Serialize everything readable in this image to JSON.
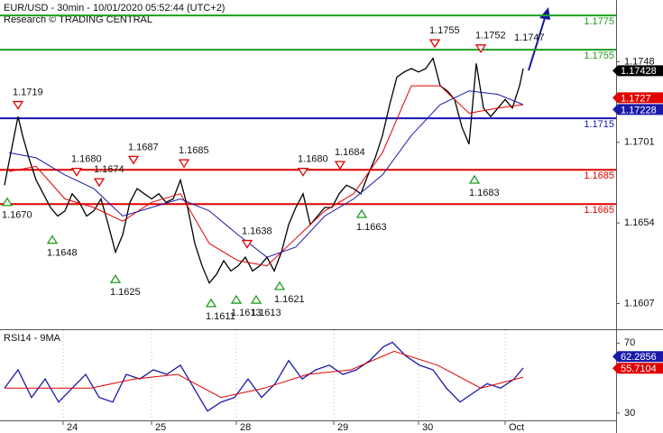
{
  "chart_data": [
    {
      "type": "line",
      "title": "EUR/USD - 30min - 10/01/2020 05:52:44 (UTC+2)",
      "subtitle": "Research © TRADING CENTRAL",
      "xlim": [
        0,
        170.75
      ],
      "ylim": [
        1.1592,
        1.1784
      ],
      "yticks": [
        1.1748,
        1.1701,
        1.1654,
        1.1607
      ],
      "levels": [
        {
          "value": 1.1775,
          "color": "#1f9e1f"
        },
        {
          "value": 1.1755,
          "color": "#1f9e1f"
        },
        {
          "value": 1.1715,
          "color": "#1515b5"
        },
        {
          "value": 1.1685,
          "color": "#e00000"
        },
        {
          "value": 1.1665,
          "color": "#e00000"
        }
      ],
      "series": [
        {
          "color": "#000000",
          "x": [
            1.25,
            3,
            5,
            6.25,
            8,
            10,
            12,
            14,
            16,
            18,
            20,
            22,
            24,
            26,
            28,
            30,
            32,
            34,
            36,
            38,
            40,
            42,
            44,
            46,
            48,
            50,
            52,
            54,
            56,
            58,
            60,
            62,
            64,
            66,
            68,
            70,
            72,
            74,
            76,
            78,
            80,
            82,
            84,
            86,
            88,
            90,
            92,
            94,
            96,
            98,
            100,
            102,
            104,
            106,
            108,
            110,
            112,
            114,
            116,
            118,
            120,
            122,
            124,
            126,
            128,
            130,
            132,
            134,
            136,
            138,
            140,
            142,
            144,
            145
          ],
          "values": [
            1.1676,
            1.1695,
            1.1716,
            1.1705,
            1.1692,
            1.1679,
            1.1671,
            1.1663,
            1.1658,
            1.1661,
            1.1671,
            1.1666,
            1.1658,
            1.1661,
            1.1668,
            1.1653,
            1.1637,
            1.1647,
            1.1666,
            1.1674,
            1.1671,
            1.1668,
            1.1671,
            1.1666,
            1.1668,
            1.1679,
            1.1663,
            1.1642,
            1.1629,
            1.1619,
            1.1624,
            1.1632,
            1.1626,
            1.1629,
            1.1634,
            1.1626,
            1.1629,
            1.1634,
            1.1626,
            1.1637,
            1.1653,
            1.1663,
            1.1671,
            1.1653,
            1.1658,
            1.1663,
            1.1663,
            1.1671,
            1.1676,
            1.1674,
            1.1671,
            1.1682,
            1.1692,
            1.1705,
            1.1723,
            1.1739,
            1.1742,
            1.1744,
            1.1742,
            1.1744,
            1.175,
            1.1734,
            1.1731,
            1.1726,
            1.171,
            1.17,
            1.1747,
            1.1721,
            1.1716,
            1.1721,
            1.1726,
            1.1721,
            1.1734,
            1.1744
          ]
        },
        {
          "color": "#e00000",
          "x": [
            2.5,
            10,
            18,
            26,
            34,
            42,
            50,
            58,
            66,
            74,
            82,
            90,
            98,
            106,
            114,
            122,
            130,
            138,
            145
          ],
          "values": [
            1.1684,
            1.1687,
            1.1668,
            1.1663,
            1.1655,
            1.1666,
            1.1671,
            1.1642,
            1.1632,
            1.1629,
            1.1645,
            1.1661,
            1.1671,
            1.1695,
            1.1734,
            1.1734,
            1.1718,
            1.1721,
            1.1723
          ]
        },
        {
          "color": "#1a1aa8",
          "x": [
            2.5,
            10,
            18,
            26,
            34,
            42,
            50,
            58,
            66,
            74,
            82,
            90,
            98,
            106,
            114,
            122,
            130,
            138,
            145
          ],
          "values": [
            1.1695,
            1.1692,
            1.1682,
            1.1674,
            1.1658,
            1.1663,
            1.1668,
            1.1661,
            1.1647,
            1.1634,
            1.164,
            1.1658,
            1.1668,
            1.1682,
            1.1705,
            1.1723,
            1.1731,
            1.1729,
            1.1723
          ]
        }
      ],
      "annotations": [
        {
          "x": 5,
          "value": 1.1719,
          "label": "1.1719",
          "kind": "high"
        },
        {
          "x": 2,
          "value": 1.167,
          "label": "1.1670",
          "kind": "low"
        },
        {
          "x": 14.5,
          "value": 1.1648,
          "label": "1.1648",
          "kind": "low"
        },
        {
          "x": 21.25,
          "value": 1.168,
          "label": "1.1680",
          "kind": "high"
        },
        {
          "x": 27.5,
          "value": 1.1674,
          "label": "1.1674",
          "kind": "high"
        },
        {
          "x": 32,
          "value": 1.1625,
          "label": "1.1625",
          "kind": "low"
        },
        {
          "x": 37,
          "value": 1.1687,
          "label": "1.1687",
          "kind": "high"
        },
        {
          "x": 51,
          "value": 1.1685,
          "label": "1.1685",
          "kind": "high"
        },
        {
          "x": 58.5,
          "value": 1.1611,
          "label": "1.1611",
          "kind": "low"
        },
        {
          "x": 65.5,
          "value": 1.1613,
          "label": "1.1613",
          "kind": "low"
        },
        {
          "x": 71,
          "value": 1.1613,
          "label": "1.1613",
          "kind": "low"
        },
        {
          "x": 68.5,
          "value": 1.1638,
          "label": "1.1638",
          "kind": "high"
        },
        {
          "x": 77.5,
          "value": 1.1621,
          "label": "1.1621",
          "kind": "low"
        },
        {
          "x": 84,
          "value": 1.168,
          "label": "1.1680",
          "kind": "high"
        },
        {
          "x": 94.25,
          "value": 1.1684,
          "label": "1.1684",
          "kind": "high"
        },
        {
          "x": 100.25,
          "value": 1.1663,
          "label": "1.1663",
          "kind": "low"
        },
        {
          "x": 120.5,
          "value": 1.1755,
          "label": "1.1755",
          "kind": "high"
        },
        {
          "x": 131.5,
          "value": 1.1683,
          "label": "1.1683",
          "kind": "low"
        },
        {
          "x": 133.25,
          "value": 1.1752,
          "label": "1.1752",
          "kind": "high"
        },
        {
          "x": 145.5,
          "value": 1.1747,
          "label": "1.1747",
          "kind": "text"
        }
      ],
      "price_labels": [
        {
          "value": 1.17428,
          "color": "#000000"
        },
        {
          "value": 1.1727,
          "color": "#e00000"
        },
        {
          "value": 1.17228,
          "color": "#1a1aa8"
        }
      ]
    },
    {
      "type": "line",
      "title": "RSI14 - 9MA",
      "xlim": [
        0,
        170.75
      ],
      "xticks": [
        {
          "value": 17.5,
          "label": "24"
        },
        {
          "value": 42,
          "label": "25"
        },
        {
          "value": 65.5,
          "label": "28"
        },
        {
          "value": 92.5,
          "label": "29"
        },
        {
          "value": 116,
          "label": "30"
        },
        {
          "value": 140,
          "label": "Oct"
        }
      ],
      "ylim": [
        25.8,
        77.4
      ],
      "yticks": [
        30,
        70
      ],
      "series": [
        {
          "color": "#1a1aa8",
          "x": [
            1.25,
            5,
            8.75,
            12.5,
            16.25,
            20,
            23.75,
            27.5,
            31.25,
            35,
            38.75,
            42.5,
            46.25,
            50,
            53.75,
            57.5,
            61.25,
            65,
            68.75,
            72.5,
            76.25,
            80,
            83.75,
            87.5,
            91.25,
            95,
            98.75,
            102.5,
            106.25,
            108.75,
            112.5,
            116.25,
            120,
            123.75,
            127.5,
            131.25,
            135,
            138.75,
            142.5,
            145
          ],
          "values": [
            44.2,
            54.7,
            38.9,
            49.5,
            36.3,
            44.2,
            52.1,
            38.9,
            36.3,
            52.1,
            49.5,
            54.7,
            52.1,
            57.4,
            44.2,
            31.1,
            36.3,
            38.9,
            49.5,
            38.9,
            46.8,
            60,
            49.5,
            54.7,
            57.4,
            52.1,
            54.7,
            60,
            67.9,
            70.5,
            62.6,
            57.4,
            54.7,
            44.2,
            36.3,
            41.6,
            46.8,
            44.2,
            49.5,
            55.8
          ]
        },
        {
          "color": "#e00000",
          "x": [
            1.25,
            13.25,
            25.25,
            37.25,
            49.25,
            61.25,
            73.25,
            85.25,
            97.25,
            109.25,
            121.25,
            133.25,
            145
          ],
          "values": [
            44.2,
            44.2,
            44.2,
            49.5,
            52.1,
            38.9,
            44.2,
            52.1,
            54.7,
            65.3,
            57.4,
            44.2,
            50.5
          ]
        }
      ],
      "price_labels": [
        {
          "value": 62.2856,
          "color": "#1a1aa8"
        },
        {
          "value": 55.7104,
          "color": "#e00000"
        }
      ]
    }
  ]
}
